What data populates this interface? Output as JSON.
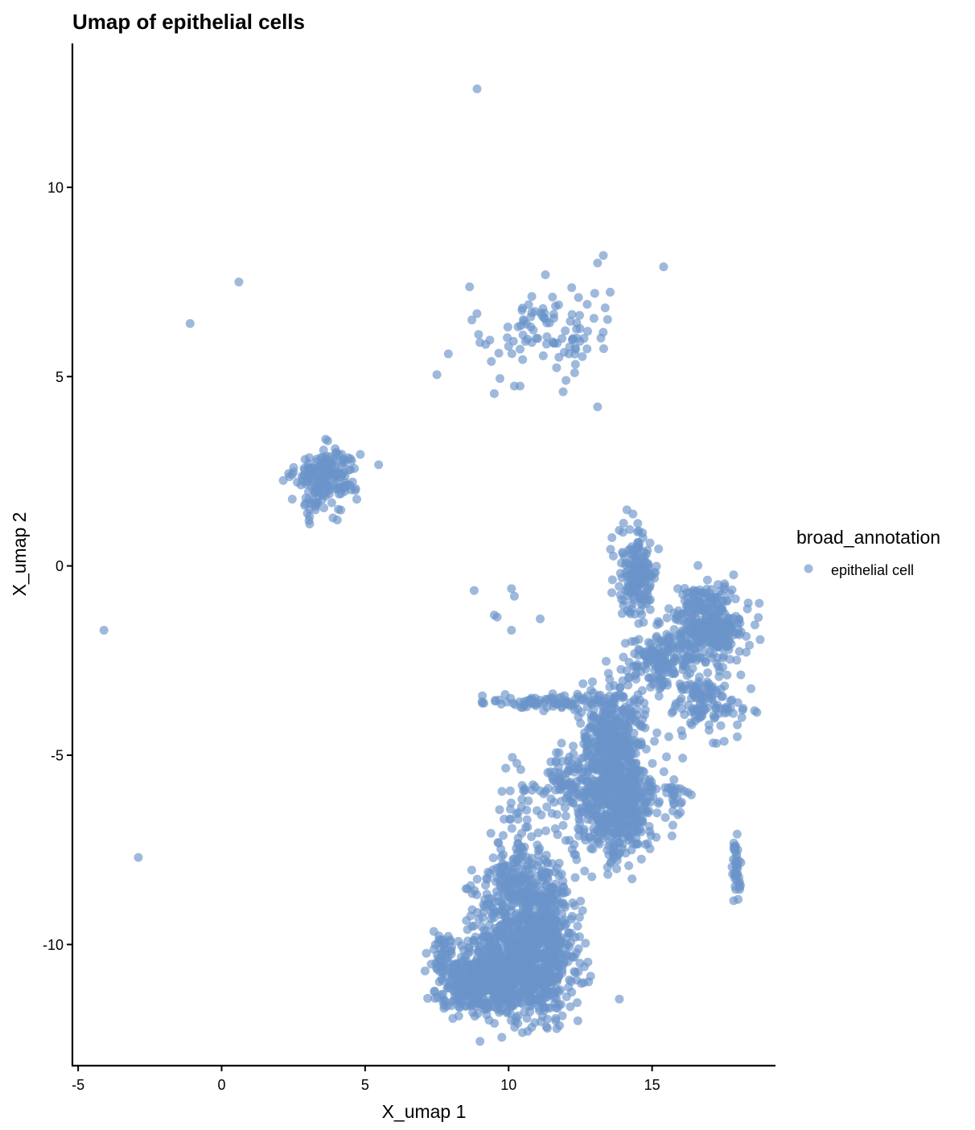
{
  "chart_data": {
    "type": "scatter",
    "title": "Umap of epithelial cells",
    "xlabel": "X_umap 1",
    "ylabel": "X_umap 2",
    "xlim": [
      -5.2,
      19.3
    ],
    "ylim": [
      -13.2,
      13.8
    ],
    "grid": false,
    "x_ticks": [
      -5,
      0,
      5,
      10,
      15
    ],
    "x_tick_labels": [
      "-5",
      "0",
      "5",
      "10",
      "15"
    ],
    "y_ticks": [
      -10,
      -5,
      0,
      5,
      10
    ],
    "y_tick_labels": [
      "-10",
      "-5",
      "0",
      "5",
      "10"
    ],
    "legend": {
      "title": "broad_annotation",
      "placement": "right",
      "entries": [
        {
          "label": "epithelial cell",
          "color": "#6A93C9"
        }
      ]
    },
    "point_color": "#6A93C9",
    "point_opacity": 0.65,
    "series": [
      {
        "name": "epithelial cell",
        "points": [
          [
            8.9,
            12.6
          ],
          [
            0.6,
            7.5
          ],
          [
            -1.1,
            6.4
          ],
          [
            -4.1,
            -1.7
          ],
          [
            -2.9,
            -7.7
          ],
          [
            7.5,
            5.05
          ],
          [
            7.9,
            5.6
          ],
          [
            13.3,
            8.2
          ],
          [
            13.1,
            8.0
          ],
          [
            15.4,
            7.9
          ],
          [
            13.1,
            4.2
          ],
          [
            9.5,
            4.55
          ],
          [
            8.8,
            -0.65
          ],
          [
            10.1,
            -0.6
          ],
          [
            10.2,
            -0.8
          ],
          [
            9.5,
            -1.3
          ],
          [
            9.6,
            -1.35
          ],
          [
            10.1,
            -1.7
          ],
          [
            11.1,
            -1.4
          ],
          [
            9.0,
            5.9
          ],
          [
            9.2,
            5.85
          ],
          [
            9.7,
            4.95
          ],
          [
            10.2,
            4.75
          ],
          [
            10.4,
            4.75
          ],
          [
            9.4,
            5.4
          ],
          [
            10.0,
            5.8
          ],
          [
            10.5,
            6.1
          ],
          [
            11.9,
            4.6
          ],
          [
            12.0,
            4.9
          ],
          [
            12.3,
            5.1
          ],
          [
            12.1,
            5.6
          ],
          [
            10.7,
            6.9
          ],
          [
            12.2,
            7.35
          ],
          [
            13.0,
            7.2
          ]
        ],
        "clusters": [
          {
            "cx": 11.3,
            "cy": 6.3,
            "sx": 1.1,
            "sy": 0.55,
            "n": 85
          },
          {
            "cx": 3.7,
            "cy": 2.4,
            "sx": 0.55,
            "sy": 0.35,
            "n": 170
          },
          {
            "cx": 3.3,
            "cy": 1.9,
            "sx": 0.35,
            "sy": 0.4,
            "n": 35
          },
          {
            "cx": 14.5,
            "cy": -0.2,
            "sx": 0.35,
            "sy": 0.6,
            "n": 180
          },
          {
            "cx": 17.0,
            "cy": -1.5,
            "sx": 0.6,
            "sy": 0.5,
            "n": 320
          },
          {
            "cx": 15.3,
            "cy": -2.5,
            "sx": 0.6,
            "sy": 0.4,
            "n": 170
          },
          {
            "cx": 16.9,
            "cy": -3.6,
            "sx": 0.6,
            "sy": 0.4,
            "n": 120
          },
          {
            "cx": 11.3,
            "cy": -3.6,
            "sx": 1.0,
            "sy": 0.1,
            "n": 80
          },
          {
            "cx": 13.6,
            "cy": -4.4,
            "sx": 0.6,
            "sy": 0.6,
            "n": 300
          },
          {
            "cx": 13.7,
            "cy": -6.2,
            "sx": 0.75,
            "sy": 0.8,
            "n": 600
          },
          {
            "cx": 11.9,
            "cy": -5.8,
            "sx": 0.4,
            "sy": 0.4,
            "n": 70
          },
          {
            "cx": 15.9,
            "cy": -6.1,
            "sx": 0.2,
            "sy": 0.25,
            "n": 20
          },
          {
            "cx": 10.2,
            "cy": -6.2,
            "sx": 0.4,
            "sy": 0.6,
            "n": 30
          },
          {
            "cx": 10.3,
            "cy": -8.6,
            "sx": 0.7,
            "sy": 0.6,
            "n": 250
          },
          {
            "cx": 11.3,
            "cy": -9.0,
            "sx": 0.45,
            "sy": 0.8,
            "n": 160
          },
          {
            "cx": 10.5,
            "cy": -10.5,
            "sx": 0.9,
            "sy": 0.7,
            "n": 900
          },
          {
            "cx": 8.8,
            "cy": -11.0,
            "sx": 0.6,
            "sy": 0.35,
            "n": 320
          },
          {
            "cx": 7.7,
            "cy": -10.2,
            "sx": 0.3,
            "sy": 0.3,
            "n": 40
          },
          {
            "cx": 17.95,
            "cy": -7.9,
            "sx": 0.07,
            "sy": 0.35,
            "n": 40
          }
        ]
      }
    ]
  }
}
